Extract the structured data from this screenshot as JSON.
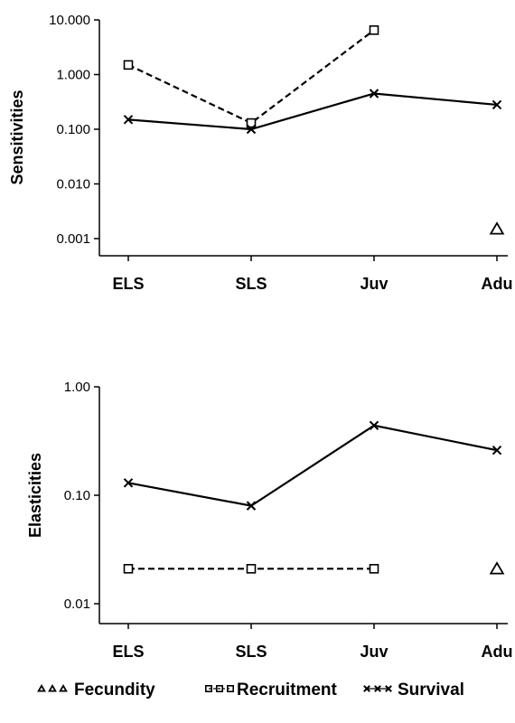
{
  "chart_data": [
    {
      "type": "line",
      "ylabel": "Sensitivities",
      "yscale": "log",
      "ylim": [
        0.0005,
        10
      ],
      "yticks": [
        "10.000",
        "1.000",
        "0.100",
        "0.010",
        "0.001"
      ],
      "categories": [
        "ELS",
        "SLS",
        "Juv",
        "Adu"
      ],
      "series": [
        {
          "name": "Fecundity",
          "marker": "triangle",
          "dash": "none",
          "show_line": false,
          "values": [
            null,
            null,
            null,
            0.0015
          ]
        },
        {
          "name": "Recruitment",
          "marker": "square",
          "dash": "dashed",
          "show_line": true,
          "values": [
            1.5,
            0.13,
            6.5,
            null
          ]
        },
        {
          "name": "Survival",
          "marker": "x",
          "dash": "solid",
          "show_line": true,
          "values": [
            0.15,
            0.1,
            0.45,
            0.28
          ]
        }
      ]
    },
    {
      "type": "line",
      "ylabel": "Elasticities",
      "yscale": "log",
      "ylim": [
        0.007,
        1
      ],
      "yticks": [
        "1.00",
        "0.10",
        "0.01"
      ],
      "categories": [
        "ELS",
        "SLS",
        "Juv",
        "Adu"
      ],
      "series": [
        {
          "name": "Fecundity",
          "marker": "triangle",
          "dash": "none",
          "show_line": false,
          "values": [
            null,
            null,
            null,
            0.021
          ]
        },
        {
          "name": "Recruitment",
          "marker": "square",
          "dash": "dashed",
          "show_line": true,
          "values": [
            0.021,
            0.021,
            0.021,
            null
          ]
        },
        {
          "name": "Survival",
          "marker": "x",
          "dash": "solid",
          "show_line": true,
          "values": [
            0.13,
            0.08,
            0.44,
            0.26
          ]
        }
      ]
    }
  ],
  "legend": {
    "placement": "bottom",
    "items": [
      {
        "name": "Fecundity",
        "marker": "triangle"
      },
      {
        "name": "Recruitment",
        "marker": "square"
      },
      {
        "name": "Survival",
        "marker": "x"
      }
    ]
  }
}
